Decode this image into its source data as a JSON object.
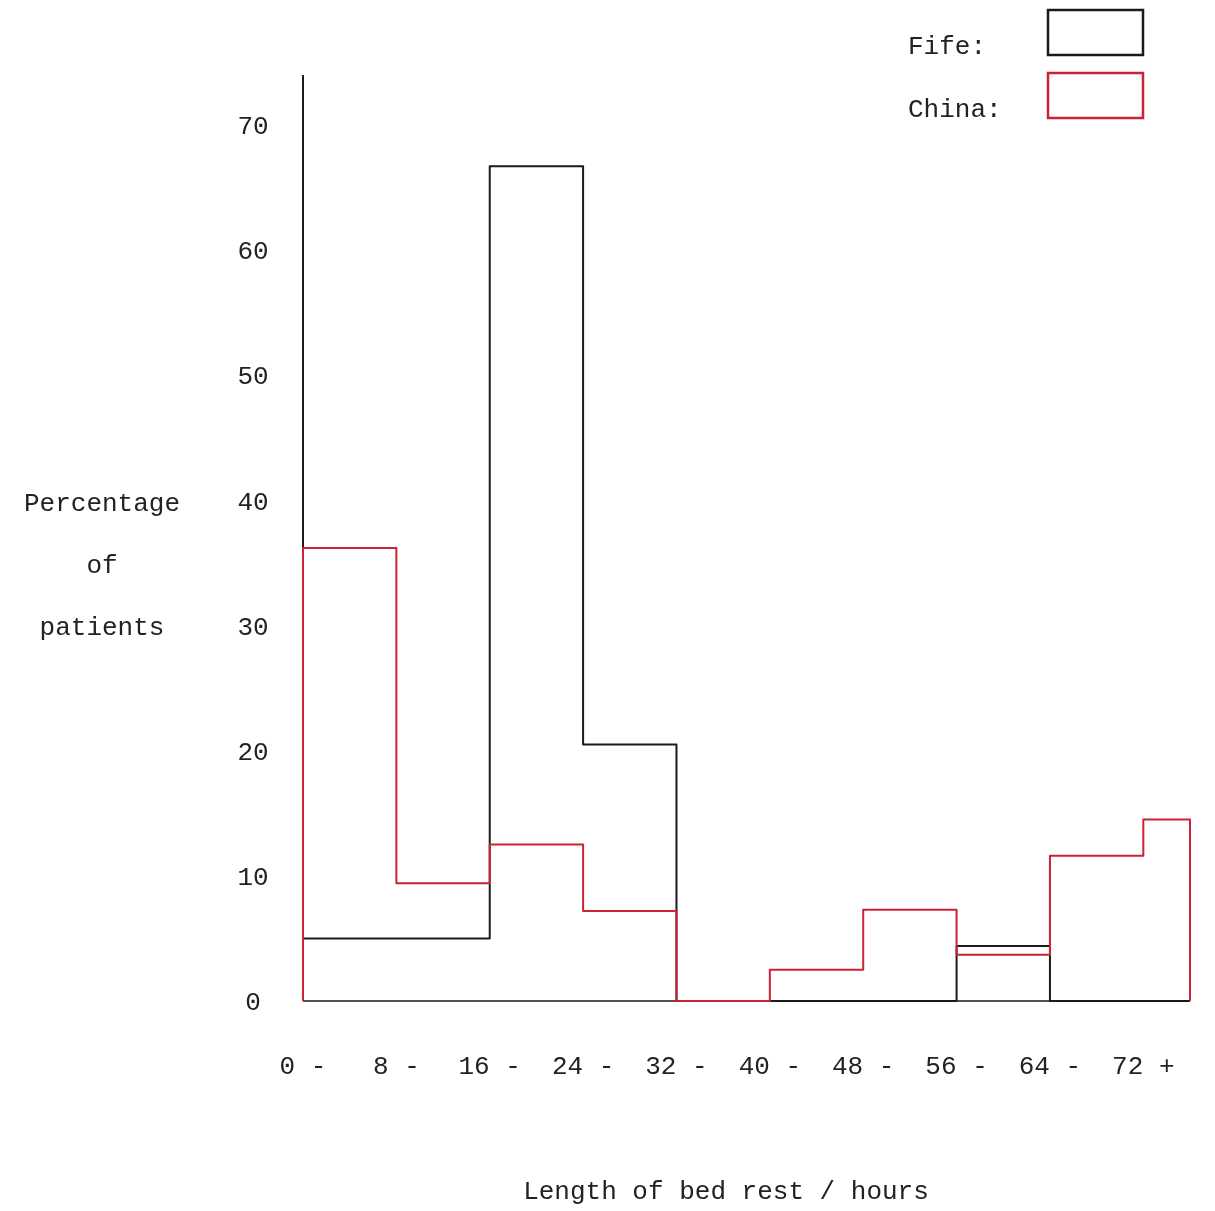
{
  "chart_data": {
    "type": "histogram",
    "xlabel": "Length of bed rest / hours",
    "ylabel": "Percentage of patients",
    "bins": [
      0,
      8,
      16,
      24,
      32,
      40,
      48,
      56,
      64,
      72,
      76
    ],
    "xlim": [
      0,
      76
    ],
    "ylim": [
      0,
      74
    ],
    "xticks": [
      {
        "value": 0,
        "label": "0 -"
      },
      {
        "value": 8,
        "label": "8 -"
      },
      {
        "value": 16,
        "label": "16 -"
      },
      {
        "value": 24,
        "label": "24 -"
      },
      {
        "value": 32,
        "label": "32 -"
      },
      {
        "value": 40,
        "label": "40 -"
      },
      {
        "value": 48,
        "label": "48 -"
      },
      {
        "value": 56,
        "label": "56 -"
      },
      {
        "value": 64,
        "label": "64 -"
      },
      {
        "value": 72,
        "label": "72 +"
      }
    ],
    "yticks": [
      0,
      10,
      20,
      30,
      40,
      50,
      60,
      70
    ],
    "grid": false,
    "legend": "top right",
    "series": [
      {
        "name": "Fife:",
        "color": "#1a1a1a",
        "values": [
          5,
          5,
          66.7,
          20.5,
          0,
          0,
          0,
          4.4,
          0,
          0
        ]
      },
      {
        "name": "China:",
        "color": "#cc2233",
        "values": [
          36.2,
          9.4,
          12.5,
          7.2,
          0,
          2.5,
          7.3,
          3.7,
          11.6,
          14.5
        ]
      }
    ]
  }
}
